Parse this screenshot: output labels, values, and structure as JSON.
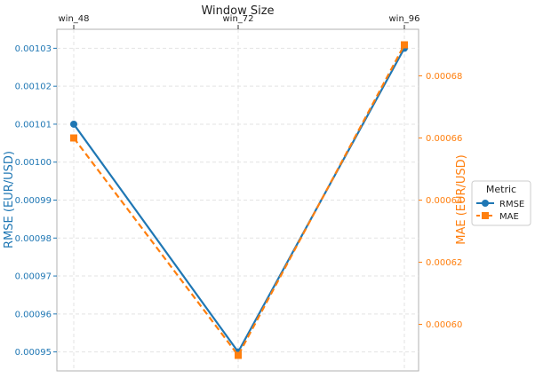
{
  "chart_data": {
    "type": "line",
    "title": "",
    "xlabel": "Window Size",
    "categories": [
      "win_48",
      "win_72",
      "win_96"
    ],
    "left_axis": {
      "label": "RMSE (EUR/USD)",
      "ylim": [
        0.000945,
        0.001035
      ],
      "ticks": [
        0.00095,
        0.00096,
        0.00097,
        0.00098,
        0.00099,
        0.001,
        0.00101,
        0.00102,
        0.00103
      ],
      "tick_labels": [
        "0.00095",
        "0.00096",
        "0.00097",
        "0.00098",
        "0.00099",
        "0.00100",
        "0.00101",
        "0.00102",
        "0.00103"
      ]
    },
    "right_axis": {
      "label": "MAE (EUR/USD)",
      "ylim": [
        0.000585,
        0.000695
      ],
      "ticks": [
        0.0006,
        0.00062,
        0.00064,
        0.00066,
        0.00068
      ],
      "tick_labels": [
        "0.00060",
        "0.00062",
        "0.00064",
        "0.00066",
        "0.00068"
      ]
    },
    "series": [
      {
        "name": "RMSE",
        "axis": "left",
        "values": [
          0.00101,
          0.00095,
          0.00103
        ],
        "color": "#1f77b4",
        "marker": "circle",
        "linestyle": "solid"
      },
      {
        "name": "MAE",
        "axis": "right",
        "values": [
          0.00066,
          0.00059,
          0.00069
        ],
        "color": "#ff7f0e",
        "marker": "square",
        "linestyle": "dashed"
      }
    ],
    "legend": {
      "title": "Metric",
      "placement": "right"
    },
    "grid": true
  }
}
